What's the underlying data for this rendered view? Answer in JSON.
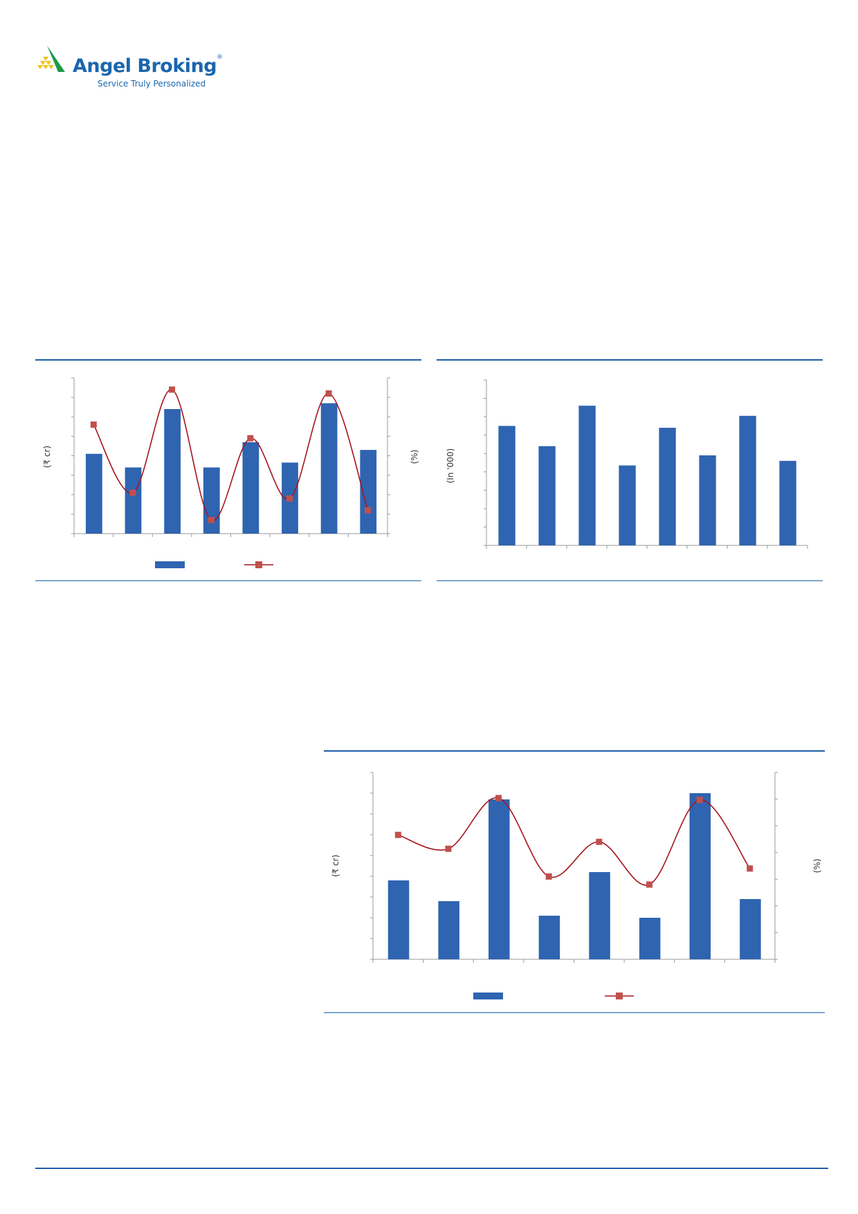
{
  "header": {
    "brand": "Angel Broking",
    "registered": "®",
    "tagline": "Service Truly Personalized"
  },
  "colors": {
    "bar": "#2f64b1",
    "line": "#a3151c",
    "marker": "#c0504d",
    "rule": "#1f5fa8",
    "logo_green": "#1f9a48",
    "logo_yellow": "#f2c21b"
  },
  "chart_data": [
    {
      "type": "bar+line",
      "ylabel": "(₹ cr)",
      "y2label": "(%)",
      "legend_placement": "bottom",
      "grid": false,
      "tick_labels_visible": false,
      "series": [
        {
          "kind": "bar",
          "values": [
            4.1,
            3.4,
            6.4,
            3.4,
            4.7,
            3.65,
            6.7,
            4.3
          ]
        },
        {
          "kind": "line",
          "axis": "right",
          "values": [
            5.6,
            2.1,
            7.4,
            0.7,
            4.9,
            1.8,
            7.2,
            1.2
          ]
        }
      ],
      "ylim": [
        0,
        8
      ],
      "y2lim": [
        0,
        8
      ]
    },
    {
      "type": "bar",
      "ylabel": "(In '000)",
      "grid": false,
      "tick_labels_visible": false,
      "series": [
        {
          "kind": "bar",
          "values": [
            6.5,
            5.4,
            7.6,
            4.35,
            6.4,
            4.9,
            7.05,
            4.6
          ]
        }
      ],
      "ylim": [
        0,
        9
      ]
    },
    {
      "type": "bar+line",
      "ylabel": "(₹ cr)",
      "y2label": "(%)",
      "legend_placement": "bottom",
      "grid": false,
      "tick_labels_visible": false,
      "series": [
        {
          "kind": "bar",
          "values": [
            3.8,
            2.8,
            7.7,
            2.1,
            4.2,
            2.0,
            8.0,
            2.9
          ]
        },
        {
          "kind": "line",
          "axis": "right",
          "values": [
            4.66,
            4.14,
            6.04,
            3.1,
            4.4,
            2.8,
            5.97,
            3.4
          ]
        }
      ],
      "ylim": [
        0,
        9
      ],
      "y2lim": [
        0,
        7
      ]
    }
  ]
}
